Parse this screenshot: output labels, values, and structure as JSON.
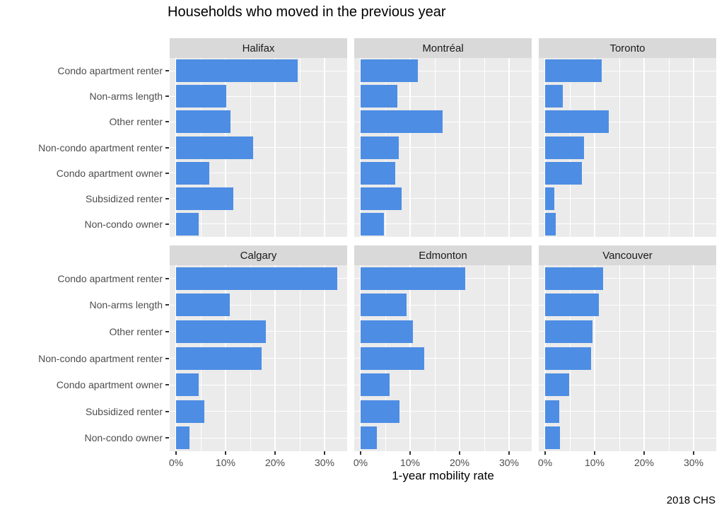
{
  "title": "Households who moved in the previous year",
  "caption": "2018 CHS",
  "chart_data": {
    "type": "bar",
    "orientation": "horizontal",
    "facet_layout": {
      "rows": 2,
      "cols": 3
    },
    "categories": [
      "Condo apartment renter",
      "Non-arms length",
      "Other renter",
      "Non-condo apartment renter",
      "Condo apartment owner",
      "Subsidized renter",
      "Non-condo owner"
    ],
    "series": [
      {
        "name": "Halifax",
        "values": [
          24.5,
          10.2,
          11.0,
          15.5,
          6.7,
          11.5,
          4.5
        ]
      },
      {
        "name": "Montréal",
        "values": [
          11.5,
          7.4,
          16.5,
          7.7,
          7.0,
          8.3,
          4.7
        ]
      },
      {
        "name": "Toronto",
        "values": [
          11.4,
          3.5,
          12.8,
          7.9,
          7.4,
          1.8,
          2.2
        ]
      },
      {
        "name": "Calgary",
        "values": [
          32.5,
          10.8,
          18.1,
          17.3,
          4.6,
          5.7,
          2.7
        ]
      },
      {
        "name": "Edmonton",
        "values": [
          21.1,
          9.3,
          10.6,
          12.9,
          5.9,
          7.8,
          3.3
        ]
      },
      {
        "name": "Vancouver",
        "values": [
          11.7,
          10.9,
          9.6,
          9.3,
          4.8,
          2.8,
          3.0
        ]
      }
    ],
    "xlabel": "1-year mobility rate",
    "x_ticks": [
      "0%",
      "10%",
      "20%",
      "30%"
    ],
    "x_tick_values": [
      0,
      10,
      20,
      30
    ],
    "x_minor_values": [
      5,
      15,
      25
    ],
    "xlim": [
      0,
      35
    ],
    "grid": true,
    "legend": "none",
    "colors": {
      "bar": "#4d8de4",
      "panel_bg": "#ebebeb",
      "strip_bg": "#d9d9d9",
      "gridline": "#ffffff",
      "tick_label": "#4d4d4d",
      "axis_tick": "#333333",
      "title": "#000000"
    }
  }
}
